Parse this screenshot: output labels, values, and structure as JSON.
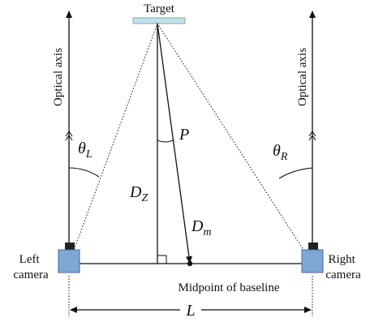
{
  "diagram": {
    "target_label": "Target",
    "optical_axis_left": "Optical axis",
    "optical_axis_right": "Optical axis",
    "left_camera": [
      "Left",
      "camera"
    ],
    "right_camera": [
      "Right",
      "camera"
    ],
    "midpoint_label": "Midpoint of baseline",
    "symbols": {
      "theta_l": {
        "base": "θ",
        "sub": "L"
      },
      "theta_r": {
        "base": "θ",
        "sub": "R"
      },
      "p": "P",
      "d_z": {
        "base": "D",
        "sub": "Z"
      },
      "d_m": {
        "base": "D",
        "sub": "m"
      },
      "l": "L"
    },
    "colors": {
      "target_fill": "#bfe3e8",
      "camera_fill": "#7fa7d6",
      "camera_top": "#222222",
      "line": "#111111"
    }
  }
}
